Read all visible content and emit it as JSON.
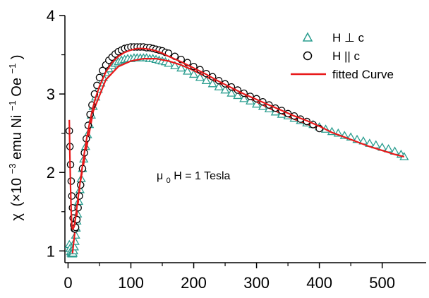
{
  "chart_data": {
    "type": "scatter",
    "title": "",
    "ylabel": {
      "chi": "χ",
      "open": "(×10",
      "exp1": "−3",
      "mid": "emu Ni",
      "exp2": "−1",
      "mid2": " Oe",
      "exp3": "−1",
      "close": ")"
    },
    "xlabel": "",
    "xlim": [
      -5,
      570
    ],
    "ylim": [
      0.85,
      4.0
    ],
    "xticks": [
      0,
      100,
      200,
      300,
      400,
      500
    ],
    "yticks": [
      1,
      2,
      3,
      4
    ],
    "grid": false,
    "legend_position": "top-right",
    "annotation": {
      "pre": "μ",
      "sub": "0",
      "post": "H = 1 Tesla"
    },
    "series": [
      {
        "name": "H ⊥ c",
        "marker": "triangle",
        "color": "#2a9d8f",
        "x": [
          2,
          3,
          4,
          5,
          6,
          7,
          8,
          9,
          10,
          11,
          12,
          13,
          14,
          15,
          17,
          19,
          21,
          23,
          25,
          28,
          31,
          34,
          37,
          40,
          44,
          48,
          52,
          56,
          60,
          65,
          70,
          75,
          80,
          85,
          90,
          95,
          100,
          105,
          110,
          115,
          120,
          125,
          130,
          135,
          140,
          145,
          150,
          155,
          160,
          170,
          180,
          190,
          200,
          210,
          220,
          230,
          240,
          250,
          260,
          270,
          280,
          290,
          300,
          310,
          320,
          330,
          340,
          350,
          360,
          370,
          380,
          390,
          400,
          410,
          420,
          430,
          440,
          450,
          460,
          470,
          480,
          490,
          500,
          510,
          520,
          530,
          535
        ],
        "y": [
          1.08,
          1.03,
          0.99,
          0.97,
          0.96,
          0.96,
          0.97,
          1.0,
          1.05,
          1.12,
          1.2,
          1.29,
          1.38,
          1.47,
          1.63,
          1.78,
          1.92,
          2.05,
          2.17,
          2.33,
          2.48,
          2.61,
          2.73,
          2.84,
          2.96,
          3.06,
          3.14,
          3.21,
          3.27,
          3.32,
          3.36,
          3.39,
          3.41,
          3.43,
          3.44,
          3.45,
          3.45,
          3.46,
          3.46,
          3.46,
          3.46,
          3.46,
          3.45,
          3.45,
          3.44,
          3.43,
          3.42,
          3.41,
          3.39,
          3.36,
          3.33,
          3.29,
          3.25,
          3.21,
          3.17,
          3.13,
          3.09,
          3.05,
          3.01,
          2.98,
          2.94,
          2.91,
          2.87,
          2.84,
          2.81,
          2.77,
          2.74,
          2.72,
          2.69,
          2.66,
          2.63,
          2.61,
          2.58,
          2.55,
          2.52,
          2.5,
          2.47,
          2.45,
          2.42,
          2.4,
          2.37,
          2.35,
          2.32,
          2.3,
          2.27,
          2.23,
          2.2
        ]
      },
      {
        "name": "H || c",
        "marker": "circle",
        "color": "#000000",
        "x": [
          2,
          3,
          4,
          5,
          6,
          7,
          8,
          9,
          10,
          11,
          12,
          14,
          16,
          18,
          20,
          23,
          26,
          29,
          32,
          35,
          38,
          42,
          46,
          50,
          55,
          60,
          65,
          70,
          75,
          80,
          85,
          90,
          95,
          100,
          105,
          110,
          115,
          120,
          125,
          130,
          135,
          140,
          145,
          150,
          155,
          160,
          170,
          180,
          190,
          200,
          210,
          220,
          230,
          240,
          250,
          260,
          270,
          280,
          290,
          300,
          310,
          320,
          330,
          340,
          350,
          360,
          370,
          380,
          390,
          400
        ],
        "y": [
          2.53,
          2.33,
          2.1,
          1.89,
          1.7,
          1.55,
          1.42,
          1.33,
          1.28,
          1.28,
          1.3,
          1.4,
          1.55,
          1.7,
          1.84,
          2.05,
          2.25,
          2.43,
          2.6,
          2.74,
          2.86,
          3.0,
          3.11,
          3.21,
          3.3,
          3.37,
          3.43,
          3.47,
          3.51,
          3.54,
          3.56,
          3.58,
          3.59,
          3.6,
          3.6,
          3.6,
          3.6,
          3.6,
          3.59,
          3.59,
          3.58,
          3.57,
          3.56,
          3.55,
          3.53,
          3.52,
          3.48,
          3.44,
          3.4,
          3.35,
          3.31,
          3.26,
          3.22,
          3.17,
          3.13,
          3.09,
          3.05,
          3.01,
          2.97,
          2.94,
          2.9,
          2.86,
          2.82,
          2.79,
          2.75,
          2.72,
          2.68,
          2.65,
          2.61,
          2.56
        ]
      },
      {
        "name": "fitted Curve",
        "marker": "line",
        "color": "#e8191a",
        "x": [
          2,
          3,
          4,
          5,
          6,
          7,
          8,
          10,
          12,
          14,
          16,
          18,
          20,
          25,
          30,
          35,
          40,
          45,
          50,
          60,
          70,
          80,
          90,
          100,
          110,
          120,
          130,
          140,
          150,
          160,
          180,
          200,
          220,
          240,
          260,
          280,
          300,
          320,
          340,
          360,
          380,
          400,
          420,
          440,
          460,
          480,
          500,
          520,
          535
        ],
        "y": [
          2.67,
          2.2,
          1.8,
          1.5,
          1.33,
          1.28,
          1.28,
          1.32,
          1.42,
          1.55,
          1.68,
          1.8,
          1.92,
          2.2,
          2.45,
          2.66,
          2.84,
          2.98,
          3.1,
          3.28,
          3.4,
          3.48,
          3.53,
          3.56,
          3.58,
          3.58,
          3.57,
          3.55,
          3.52,
          3.48,
          3.41,
          3.33,
          3.25,
          3.16,
          3.08,
          3.0,
          2.93,
          2.86,
          2.79,
          2.72,
          2.66,
          2.59,
          2.51,
          2.45,
          2.39,
          2.33,
          2.28,
          2.23,
          2.2
        ]
      }
    ],
    "fit_extra": {
      "x": [
        7,
        20,
        40,
        60,
        80,
        100,
        120,
        140,
        160,
        180,
        200,
        220,
        240,
        260,
        280,
        300,
        320,
        340,
        360,
        380,
        400
      ],
      "y": [
        0.97,
        1.9,
        2.78,
        3.18,
        3.35,
        3.42,
        3.45,
        3.45,
        3.42,
        3.37,
        3.3,
        3.22,
        3.14,
        3.06,
        2.98,
        2.9,
        2.82,
        2.75,
        2.68,
        2.62,
        2.55
      ]
    }
  }
}
